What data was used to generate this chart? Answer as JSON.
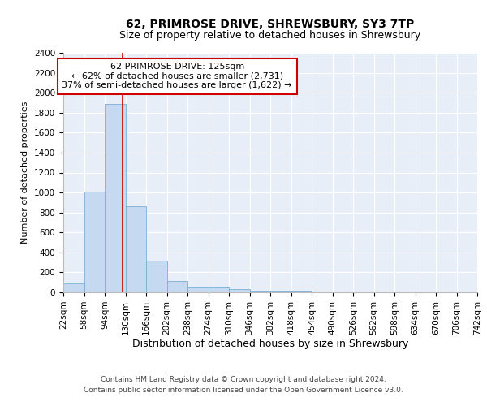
{
  "title1": "62, PRIMROSE DRIVE, SHREWSBURY, SY3 7TP",
  "title2": "Size of property relative to detached houses in Shrewsbury",
  "xlabel": "Distribution of detached houses by size in Shrewsbury",
  "ylabel": "Number of detached properties",
  "footnote1": "Contains HM Land Registry data © Crown copyright and database right 2024.",
  "footnote2": "Contains public sector information licensed under the Open Government Licence v3.0.",
  "annotation_line1": "62 PRIMROSE DRIVE: 125sqm",
  "annotation_line2": "← 62% of detached houses are smaller (2,731)",
  "annotation_line3": "37% of semi-detached houses are larger (1,622) →",
  "property_size": 125,
  "bin_edges": [
    22,
    58,
    94,
    130,
    166,
    202,
    238,
    274,
    310,
    346,
    382,
    418,
    454,
    490,
    526,
    562,
    598,
    634,
    670,
    706,
    742
  ],
  "bin_labels": [
    "22sqm",
    "58sqm",
    "94sqm",
    "130sqm",
    "166sqm",
    "202sqm",
    "238sqm",
    "274sqm",
    "310sqm",
    "346sqm",
    "382sqm",
    "418sqm",
    "454sqm",
    "490sqm",
    "526sqm",
    "562sqm",
    "598sqm",
    "634sqm",
    "670sqm",
    "706sqm",
    "742sqm"
  ],
  "bar_heights": [
    90,
    1010,
    1890,
    860,
    320,
    110,
    50,
    45,
    35,
    20,
    20,
    20,
    0,
    0,
    0,
    0,
    0,
    0,
    0,
    0
  ],
  "bar_color": "#c5d9f0",
  "bar_edge_color": "#7bafd4",
  "red_line_x": 125,
  "ylim": [
    0,
    2400
  ],
  "yticks": [
    0,
    200,
    400,
    600,
    800,
    1000,
    1200,
    1400,
    1600,
    1800,
    2000,
    2200,
    2400
  ],
  "background_color": "#e8eef8",
  "grid_color": "#ffffff",
  "annotation_box_facecolor": "#ffffff",
  "annotation_box_edgecolor": "#cc0000",
  "red_line_color": "#cc0000",
  "title1_fontsize": 10,
  "title2_fontsize": 9,
  "axis_fontsize": 7.5,
  "ylabel_fontsize": 8,
  "xlabel_fontsize": 9,
  "footnote_fontsize": 6.5,
  "annotation_fontsize": 8
}
